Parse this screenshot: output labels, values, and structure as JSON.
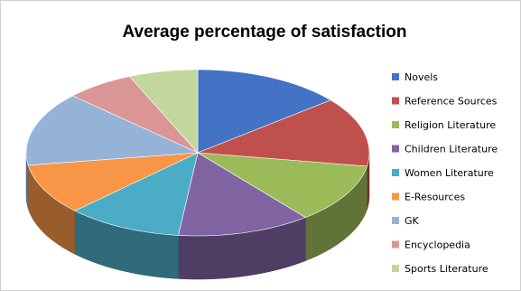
{
  "chart_data": {
    "type": "pie",
    "title": "Average percentage of satisfaction",
    "legend_position": "right",
    "three_d": true,
    "categories": [
      "Novels",
      "Reference Sources",
      "Religion Literature",
      "Children Literature",
      "Women Literature",
      "E-Resources",
      "GK",
      "Encyclopedia",
      "Sports Literature"
    ],
    "values": [
      14.1,
      13.5,
      11.6,
      12.6,
      10.9,
      9.9,
      14.4,
      6.5,
      6.5
    ],
    "colors": [
      "#4472c4",
      "#c0504d",
      "#9bbb59",
      "#8064a2",
      "#4bacc6",
      "#f79646",
      "#95b3d7",
      "#da9694",
      "#c3d69b"
    ]
  }
}
